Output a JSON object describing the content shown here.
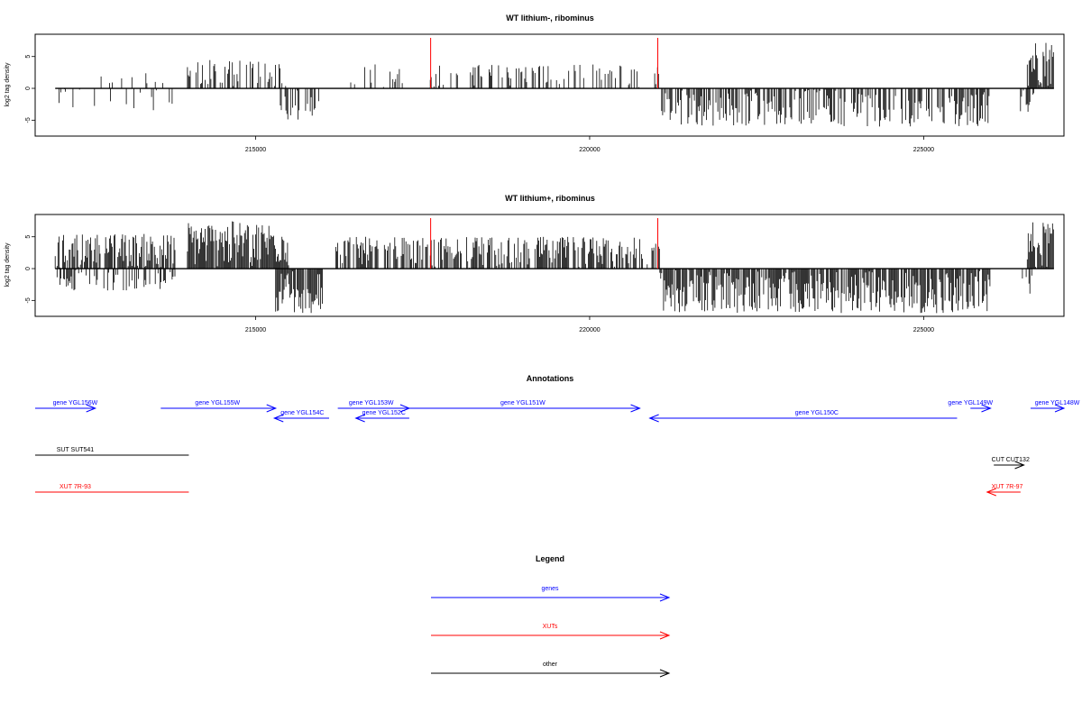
{
  "colors": {
    "gene": "#0000ff",
    "xut": "#ff0000",
    "other": "#000000",
    "marker": "#ff0000",
    "signal": "#000000"
  },
  "chart_data": [
    {
      "type": "bar",
      "title": "WT lithium-, ribominus",
      "xlabel": "",
      "ylabel": "log2 tag density",
      "xlim": [
        211700,
        227100
      ],
      "ylim": [
        -7.5,
        8.5
      ],
      "xticks": [
        215000,
        220000,
        225000
      ],
      "yticks": [
        -5,
        0,
        5
      ],
      "markers": [
        217620,
        221020
      ],
      "plus_regions": [
        {
          "start": 212000,
          "end": 213800,
          "density": 0.1,
          "max": 2.5
        },
        {
          "start": 213980,
          "end": 215500,
          "density": 0.45,
          "max": 4.5
        },
        {
          "start": 216200,
          "end": 217300,
          "density": 0.15,
          "max": 4.0
        },
        {
          "start": 217600,
          "end": 221050,
          "density": 0.35,
          "max": 3.8
        },
        {
          "start": 226550,
          "end": 226950,
          "density": 0.95,
          "max": 7.8
        }
      ],
      "minus_regions": [
        {
          "start": 212000,
          "end": 213800,
          "density": 0.1,
          "max": 3.8
        },
        {
          "start": 215300,
          "end": 215950,
          "density": 0.45,
          "max": 5.0
        },
        {
          "start": 221050,
          "end": 226000,
          "density": 0.6,
          "max": 6.0
        },
        {
          "start": 226450,
          "end": 226650,
          "density": 0.5,
          "max": 4.0
        }
      ]
    },
    {
      "type": "bar",
      "title": "WT lithium+, ribominus",
      "xlabel": "",
      "ylabel": "log2 tag density",
      "xlim": [
        211700,
        227100
      ],
      "ylim": [
        -7.5,
        8.5
      ],
      "xticks": [
        215000,
        220000,
        225000
      ],
      "yticks": [
        -5,
        0,
        5
      ],
      "markers": [
        217620,
        221020
      ],
      "plus_regions": [
        {
          "start": 212000,
          "end": 213800,
          "density": 0.8,
          "max": 5.5
        },
        {
          "start": 213980,
          "end": 215500,
          "density": 0.95,
          "max": 7.5
        },
        {
          "start": 216200,
          "end": 221050,
          "density": 0.7,
          "max": 5.0
        },
        {
          "start": 226550,
          "end": 226950,
          "density": 0.95,
          "max": 7.5
        }
      ],
      "minus_regions": [
        {
          "start": 212000,
          "end": 213800,
          "density": 0.5,
          "max": 3.5
        },
        {
          "start": 215300,
          "end": 216000,
          "density": 0.9,
          "max": 7.0
        },
        {
          "start": 221050,
          "end": 226000,
          "density": 0.85,
          "max": 7.0
        },
        {
          "start": 226450,
          "end": 226650,
          "density": 0.5,
          "max": 4.0
        }
      ]
    }
  ],
  "annotations": {
    "title": "Annotations",
    "features": [
      {
        "label": "gene YGL156W",
        "type": "gene",
        "start": 211700,
        "end": 212600,
        "strand": "+",
        "row": 0,
        "labelx": 212300
      },
      {
        "label": "gene YGL155W",
        "type": "gene",
        "start": 213580,
        "end": 215300,
        "strand": "+",
        "row": 0,
        "labelx": 214430
      },
      {
        "label": "gene YGL154C",
        "type": "gene",
        "start": 215280,
        "end": 216100,
        "strand": "-",
        "row": 1,
        "labelx": 215700
      },
      {
        "label": "gene YGL153W",
        "type": "gene",
        "start": 216230,
        "end": 217300,
        "strand": "+",
        "row": 0,
        "labelx": 216730
      },
      {
        "label": "gene YGL152C",
        "type": "gene",
        "start": 216500,
        "end": 217300,
        "strand": "-",
        "row": 1,
        "labelx": 216920
      },
      {
        "label": "gene YGL151W",
        "type": "gene",
        "start": 217300,
        "end": 220750,
        "strand": "+",
        "row": 0,
        "labelx": 219000
      },
      {
        "label": "gene YGL150C",
        "type": "gene",
        "start": 220900,
        "end": 225500,
        "strand": "-",
        "row": 1,
        "labelx": 223400
      },
      {
        "label": "gene YGL149W",
        "type": "gene",
        "start": 225700,
        "end": 226000,
        "strand": "+",
        "row": 0,
        "labelx": 225700
      },
      {
        "label": "gene YGL148W",
        "type": "gene",
        "start": 226600,
        "end": 227100,
        "strand": "+",
        "row": 0,
        "labelx": 227000
      },
      {
        "label": "SUT SUT541",
        "type": "other",
        "start": 211700,
        "end": 214000,
        "strand": "none",
        "row": 2,
        "labelx": 212300
      },
      {
        "label": "CUT CUT132",
        "type": "other",
        "start": 226050,
        "end": 226500,
        "strand": "+",
        "row": 3,
        "labelx": 226300
      },
      {
        "label": "XUT 7R-93",
        "type": "xut",
        "start": 211700,
        "end": 214000,
        "strand": "none",
        "row": 4,
        "labelx": 212300
      },
      {
        "label": "XUT 7R-97",
        "type": "xut",
        "start": 225950,
        "end": 226450,
        "strand": "-",
        "row": 4,
        "labelx": 226250
      }
    ]
  },
  "legend": {
    "title": "Legend",
    "items": [
      {
        "label": "genes",
        "type": "gene"
      },
      {
        "label": "XUTs",
        "type": "xut"
      },
      {
        "label": "other",
        "type": "other"
      }
    ]
  }
}
